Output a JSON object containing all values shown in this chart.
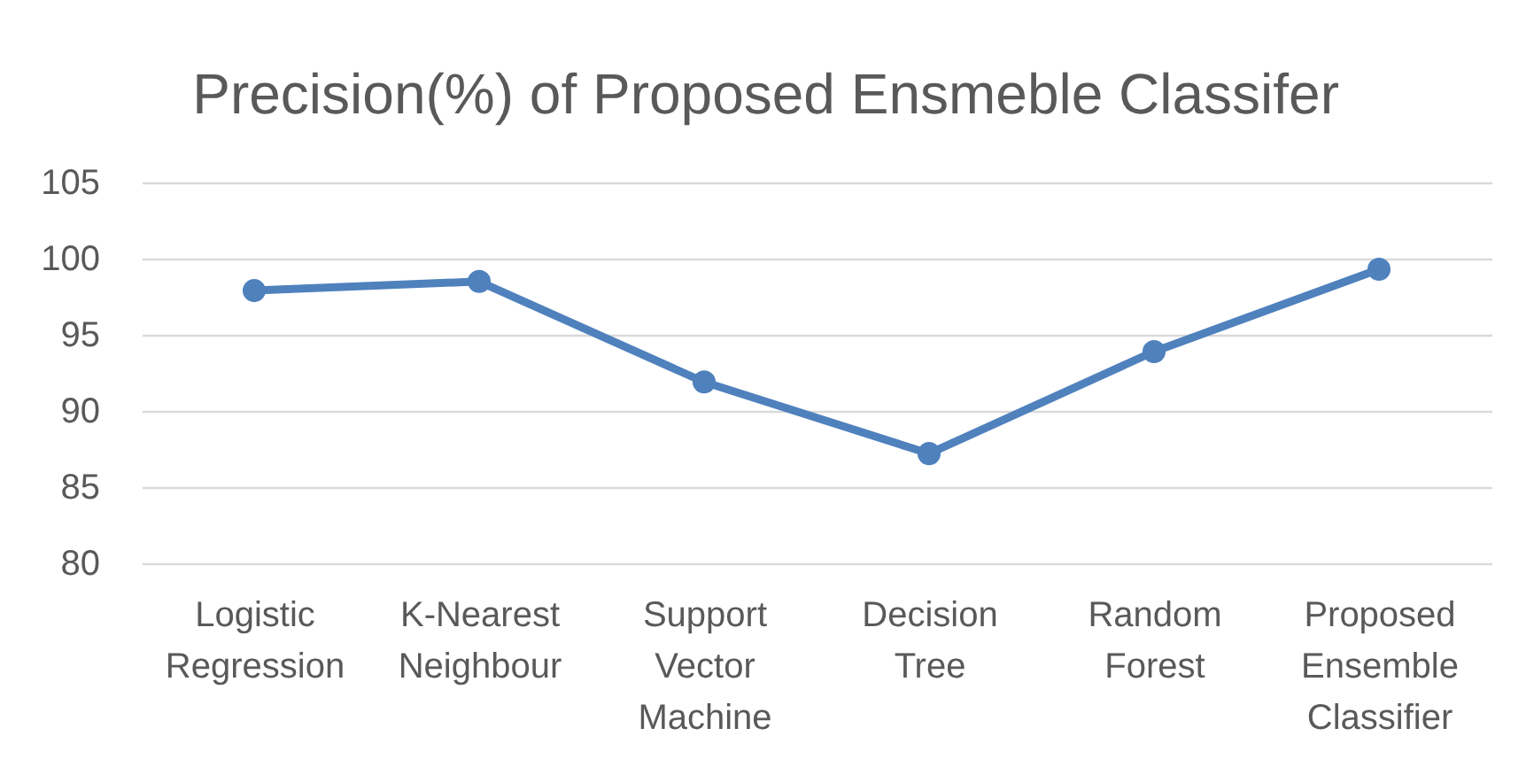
{
  "chart_data": {
    "type": "line",
    "title": "Precision(%) of Proposed Ensmeble Classifer",
    "categories": [
      "Logistic Regression",
      "K-Nearest Neighbour",
      "Support Vector Machine",
      "Decision Tree",
      "Random Forest",
      "Proposed Ensemble Classifier"
    ],
    "series": [
      {
        "color": "#4f81bd",
        "values": [
          97.9,
          98.5,
          91.9,
          87.2,
          93.9,
          99.3
        ]
      }
    ],
    "ylim": [
      80,
      105
    ],
    "yticks": [
      80,
      85,
      90,
      95,
      100,
      105
    ],
    "grid": "y",
    "marker": "circle",
    "line_style": "solid"
  }
}
